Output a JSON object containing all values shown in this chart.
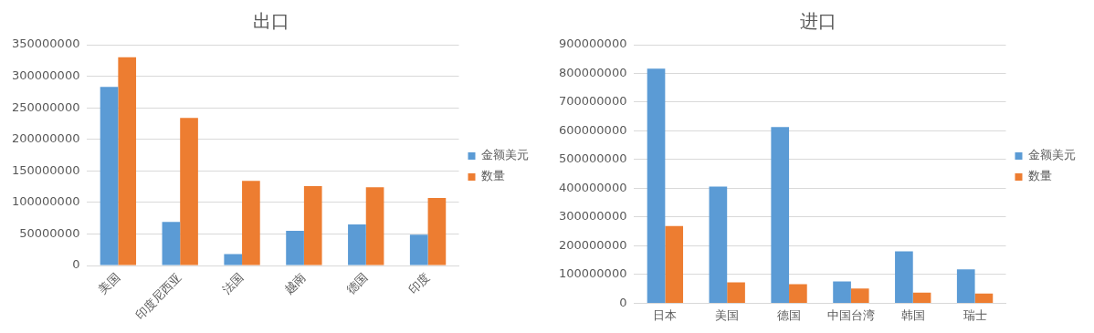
{
  "chart_data": [
    {
      "type": "bar",
      "title": "出口",
      "categories": [
        "美国",
        "印度尼西亚",
        "法国",
        "越南",
        "德国",
        "印度"
      ],
      "series": [
        {
          "name": "金额美元",
          "color": "#5b9bd5",
          "values": [
            283000000,
            69000000,
            18000000,
            55000000,
            65000000,
            49000000
          ]
        },
        {
          "name": "数量",
          "color": "#ed7d31",
          "values": [
            330000000,
            234000000,
            134000000,
            126000000,
            124000000,
            107000000
          ]
        }
      ],
      "ylim": [
        0,
        350000000
      ],
      "yticks": [
        0,
        50000000,
        100000000,
        150000000,
        200000000,
        250000000,
        300000000,
        350000000
      ],
      "grid": "y",
      "legend": "right"
    },
    {
      "type": "bar",
      "title": "进口",
      "categories": [
        "日本",
        "美国",
        "德国",
        "中国台湾",
        "韩国",
        "瑞士"
      ],
      "series": [
        {
          "name": "金额美元",
          "color": "#5b9bd5",
          "values": [
            817000000,
            406000000,
            613000000,
            76000000,
            181000000,
            118000000
          ]
        },
        {
          "name": "数量",
          "color": "#ed7d31",
          "values": [
            269000000,
            73000000,
            66000000,
            51000000,
            37000000,
            34000000
          ]
        }
      ],
      "ylim": [
        0,
        900000000
      ],
      "yticks": [
        0,
        100000000,
        200000000,
        300000000,
        400000000,
        500000000,
        600000000,
        700000000,
        800000000,
        900000000
      ],
      "grid": "y",
      "legend": "right"
    }
  ]
}
